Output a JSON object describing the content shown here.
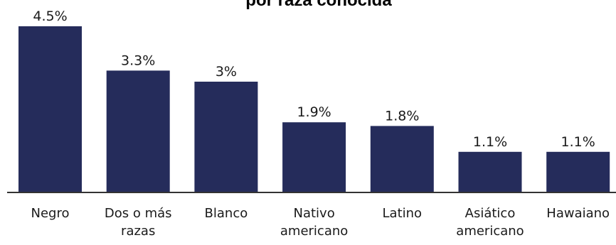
{
  "chart_data": {
    "type": "bar",
    "title": "por raza conocida",
    "categories": [
      [
        "Negro"
      ],
      [
        "Dos o más",
        "razas"
      ],
      [
        "Blanco"
      ],
      [
        "Nativo",
        "americano"
      ],
      [
        "Latino"
      ],
      [
        "Asiático",
        "americano"
      ],
      [
        "Hawaiano"
      ]
    ],
    "values": [
      4.5,
      3.3,
      3.0,
      1.9,
      1.8,
      1.1,
      1.1
    ],
    "value_labels": [
      "4.5%",
      "3.3%",
      "3%",
      "1.9%",
      "1.8%",
      "1.1%",
      "1.1%"
    ],
    "xlabel": "",
    "ylabel": "",
    "ylim": [
      0,
      4.5
    ],
    "grid": false,
    "colors": {
      "bar": "#252c5b",
      "axis": "#333333"
    }
  }
}
